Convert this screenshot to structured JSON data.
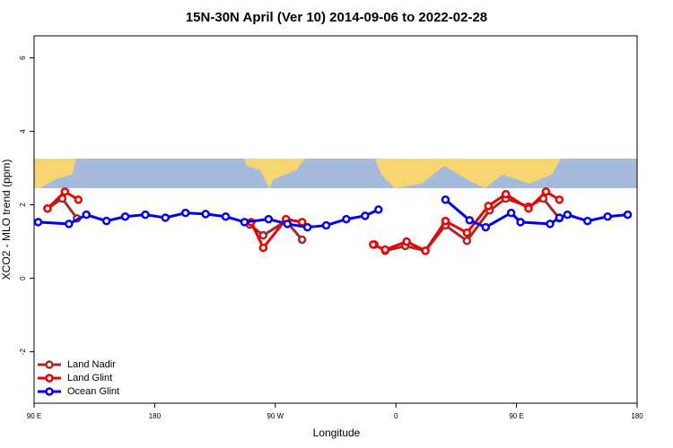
{
  "chart_data": {
    "type": "line",
    "title": "15N-30N April (Ver 10)   2014-09-06 to 2022-02-28",
    "x_label": "Longitude",
    "y_label": "XCO2 - MLO trend (ppm)",
    "xlim": [
      90,
      540
    ],
    "ylim": [
      -3.4,
      6.6
    ],
    "xticks": [
      {
        "value": 90,
        "label": "90 E"
      },
      180,
      {
        "value": 270,
        "label": "90 W"
      },
      {
        "value": 360,
        "label": "0"
      },
      {
        "value": 450,
        "label": "90 E"
      },
      {
        "value": 540,
        "label": "180"
      }
    ],
    "yticks": [
      -2,
      0,
      2,
      4,
      6
    ],
    "legend": "bottom-left",
    "series": [
      {
        "name": "Land Nadir",
        "color": "#a52a2a",
        "x": [
          100,
          111,
          122,
          null,
          251,
          261,
          278,
          290,
          null,
          344,
          352,
          367,
          382,
          397,
          413,
          430,
          442,
          459,
          470,
          482
        ],
        "values": [
          1.9,
          2.17,
          1.63,
          null,
          1.46,
          1.17,
          1.56,
          1.05,
          null,
          0.92,
          0.75,
          0.88,
          0.75,
          1.44,
          1.02,
          1.85,
          2.17,
          1.95,
          2.17,
          1.63
        ]
      },
      {
        "name": "Land Glint",
        "color": "#ee0000",
        "x": [
          100,
          113,
          123,
          null,
          252,
          261,
          278,
          290,
          null,
          343,
          352,
          368,
          382,
          397,
          413,
          429,
          442,
          459,
          472,
          482
        ],
        "values": [
          1.9,
          2.36,
          2.14,
          null,
          1.53,
          0.83,
          1.61,
          1.53,
          null,
          0.92,
          0.78,
          1.0,
          0.75,
          1.56,
          1.24,
          1.97,
          2.29,
          1.9,
          2.36,
          2.14
        ]
      },
      {
        "name": "Ocean Glint",
        "color": "#0000ee",
        "x": [
          93,
          116,
          129,
          144,
          158,
          173,
          188,
          203,
          218,
          233,
          247,
          265,
          279,
          294,
          308,
          323,
          337,
          347,
          null,
          397,
          415,
          427,
          446,
          453,
          475,
          482,
          488,
          503,
          518,
          533
        ],
        "values": [
          1.53,
          1.48,
          1.73,
          1.56,
          1.68,
          1.73,
          1.65,
          1.78,
          1.75,
          1.68,
          1.53,
          1.61,
          1.48,
          1.39,
          1.44,
          1.61,
          1.7,
          1.87,
          null,
          2.14,
          1.58,
          1.39,
          1.78,
          1.53,
          1.48,
          1.65,
          1.73,
          1.56,
          1.68,
          1.73
        ]
      }
    ]
  }
}
